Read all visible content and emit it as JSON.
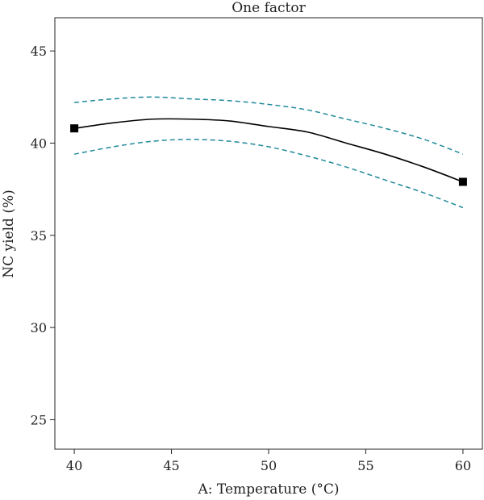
{
  "chart_data": {
    "type": "line",
    "title": "One factor",
    "xlabel": "A: Temperature (°C)",
    "ylabel": "NC yield (%)",
    "xlim": [
      39,
      61
    ],
    "ylim": [
      23.4,
      46.8
    ],
    "x_ticks": [
      "40",
      "45",
      "50",
      "55",
      "60"
    ],
    "y_ticks": [
      "25",
      "30",
      "35",
      "40",
      "45"
    ],
    "grid": false,
    "series": [
      {
        "role": "prediction",
        "style": "solid",
        "color": "#000000",
        "x": [
          40,
          42,
          44,
          46,
          48,
          50,
          52,
          54,
          56,
          58,
          60
        ],
        "y": [
          40.8,
          41.1,
          41.3,
          41.3,
          41.2,
          40.9,
          40.6,
          40.0,
          39.4,
          38.7,
          37.9
        ]
      },
      {
        "role": "upper-confidence-band",
        "style": "dashed",
        "color": "#1f8a9a",
        "x": [
          40,
          42,
          44,
          46,
          48,
          50,
          52,
          54,
          56,
          58,
          60
        ],
        "y": [
          42.2,
          42.4,
          42.5,
          42.4,
          42.3,
          42.1,
          41.8,
          41.3,
          40.8,
          40.2,
          39.4
        ]
      },
      {
        "role": "lower-confidence-band",
        "style": "dashed",
        "color": "#1f8a9a",
        "x": [
          40,
          42,
          44,
          46,
          48,
          50,
          52,
          54,
          56,
          58,
          60
        ],
        "y": [
          39.4,
          39.8,
          40.1,
          40.2,
          40.1,
          39.8,
          39.3,
          38.7,
          38.0,
          37.3,
          36.5
        ]
      }
    ],
    "points": [
      {
        "x": 40,
        "y": 40.8
      },
      {
        "x": 60,
        "y": 37.9
      }
    ]
  }
}
